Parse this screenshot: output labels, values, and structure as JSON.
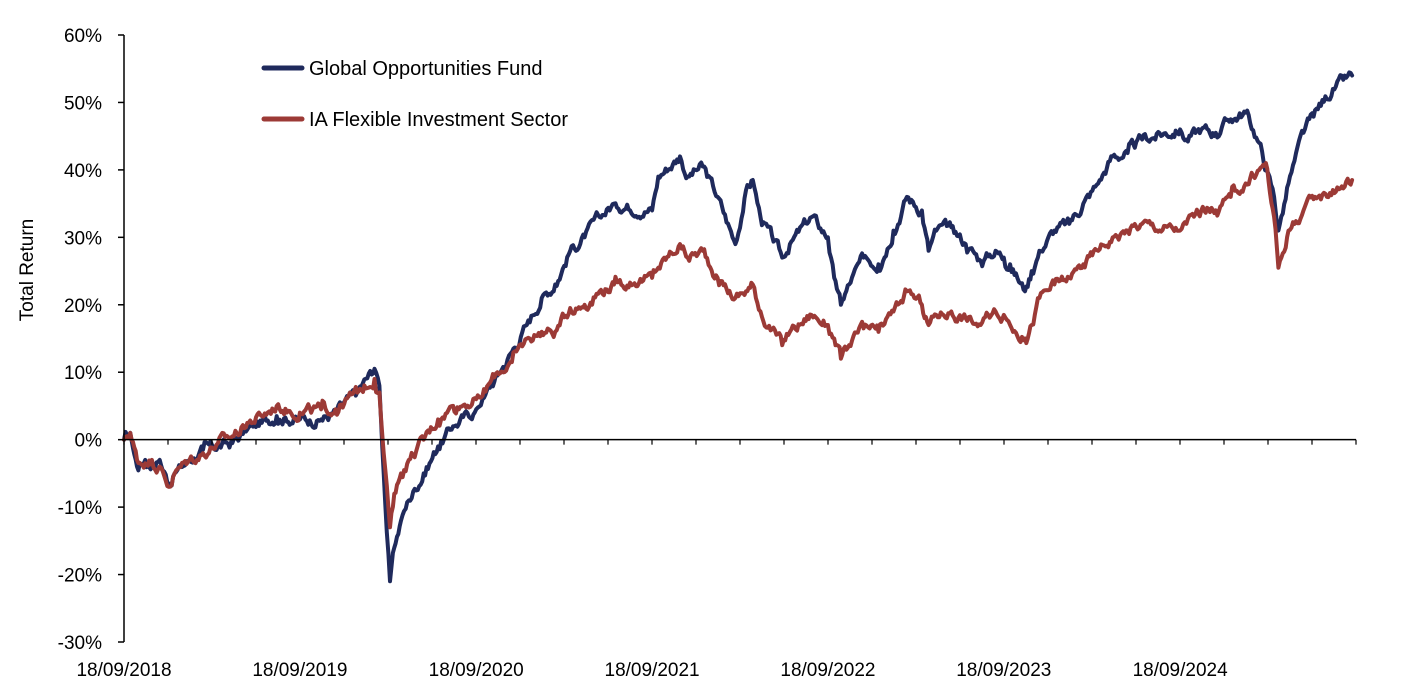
{
  "chart_data": {
    "type": "line",
    "title": "",
    "ylabel": "Total Return",
    "xlabel": "",
    "ylim": [
      -30,
      60
    ],
    "y_unit": "%",
    "y_ticks": [
      -30,
      -20,
      -10,
      0,
      10,
      20,
      30,
      40,
      50,
      60
    ],
    "y_tick_labels": [
      "-30%",
      "-20%",
      "-10%",
      "0%",
      "10%",
      "20%",
      "30%",
      "40%",
      "50%",
      "60%"
    ],
    "x_start": "18/09/2018",
    "x_end": "18/09/2025",
    "x_tick_labels": [
      "18/09/2018",
      "18/09/2019",
      "18/09/2020",
      "18/09/2021",
      "18/09/2022",
      "18/09/2023",
      "18/09/2024"
    ],
    "minor_ticks_per_year": 4,
    "legend_position": "top-left",
    "series": [
      {
        "name": "Global Opportunities Fund",
        "color": "#1f2a5c",
        "points": [
          [
            "18/09/2018",
            0
          ],
          [
            "01/10/2018",
            1
          ],
          [
            "15/10/2018",
            -4
          ],
          [
            "01/11/2018",
            -3
          ],
          [
            "15/11/2018",
            -4
          ],
          [
            "01/12/2018",
            -3
          ],
          [
            "20/12/2018",
            -6.5
          ],
          [
            "01/01/2019",
            -5
          ],
          [
            "01/02/2019",
            -3
          ],
          [
            "01/03/2019",
            -1.5
          ],
          [
            "01/04/2019",
            -1
          ],
          [
            "01/05/2019",
            -0.5
          ],
          [
            "01/06/2019",
            1.5
          ],
          [
            "01/07/2019",
            2.5
          ],
          [
            "01/08/2019",
            3.5
          ],
          [
            "18/09/2019",
            3
          ],
          [
            "01/11/2019",
            3
          ],
          [
            "01/12/2019",
            4
          ],
          [
            "15/01/2020",
            7
          ],
          [
            "20/02/2020",
            10.5
          ],
          [
            "01/03/2020",
            8
          ],
          [
            "10/03/2020",
            -5
          ],
          [
            "23/03/2020",
            -21
          ],
          [
            "01/04/2020",
            -16
          ],
          [
            "15/04/2020",
            -12
          ],
          [
            "01/05/2020",
            -9
          ],
          [
            "01/06/2020",
            -5
          ],
          [
            "01/07/2020",
            -1
          ],
          [
            "01/08/2020",
            2
          ],
          [
            "18/09/2020",
            4.5
          ],
          [
            "01/10/2020",
            6
          ],
          [
            "01/11/2020",
            9.5
          ],
          [
            "01/12/2020",
            13
          ],
          [
            "01/01/2021",
            17
          ],
          [
            "01/02/2021",
            21
          ],
          [
            "01/03/2021",
            23
          ],
          [
            "01/04/2021",
            28
          ],
          [
            "01/05/2021",
            30
          ],
          [
            "01/06/2021",
            33
          ],
          [
            "01/07/2021",
            35
          ],
          [
            "18/09/2021",
            34
          ],
          [
            "01/10/2021",
            39
          ],
          [
            "15/11/2021",
            42
          ],
          [
            "01/12/2021",
            39
          ],
          [
            "01/01/2022",
            40.5
          ],
          [
            "01/02/2022",
            36
          ],
          [
            "10/03/2022",
            29
          ],
          [
            "01/04/2022",
            37
          ],
          [
            "15/04/2022",
            38.5
          ],
          [
            "01/05/2022",
            33
          ],
          [
            "15/06/2022",
            27
          ],
          [
            "01/07/2022",
            29
          ],
          [
            "15/08/2022",
            33
          ],
          [
            "18/09/2022",
            30
          ],
          [
            "01/10/2022",
            24
          ],
          [
            "15/10/2022",
            20
          ],
          [
            "01/11/2022",
            23
          ],
          [
            "01/12/2022",
            27
          ],
          [
            "01/01/2023",
            26
          ],
          [
            "01/02/2023",
            31
          ],
          [
            "01/03/2023",
            36
          ],
          [
            "01/04/2023",
            34
          ],
          [
            "15/04/2023",
            28
          ],
          [
            "01/05/2023",
            31
          ],
          [
            "01/06/2023",
            31.5
          ],
          [
            "01/07/2023",
            29
          ],
          [
            "01/08/2023",
            26.5
          ],
          [
            "01/09/2023",
            28
          ],
          [
            "18/09/2023",
            27
          ],
          [
            "01/10/2023",
            26
          ],
          [
            "01/11/2023",
            22
          ],
          [
            "15/11/2023",
            25
          ],
          [
            "01/12/2023",
            28
          ],
          [
            "01/01/2024",
            31
          ],
          [
            "01/02/2024",
            32
          ],
          [
            "01/03/2024",
            35
          ],
          [
            "01/04/2024",
            38
          ],
          [
            "01/05/2024",
            42
          ],
          [
            "01/06/2024",
            42.5
          ],
          [
            "01/07/2024",
            44.5
          ],
          [
            "18/09/2024",
            46
          ],
          [
            "01/10/2024",
            44.5
          ],
          [
            "01/11/2024",
            46
          ],
          [
            "01/12/2024",
            45.5
          ],
          [
            "01/01/2025",
            47.5
          ],
          [
            "01/02/2025",
            48.5
          ],
          [
            "01/03/2025",
            44
          ],
          [
            "01/04/2025",
            36
          ],
          [
            "10/04/2025",
            31
          ],
          [
            "01/05/2025",
            38
          ],
          [
            "01/06/2025",
            45.5
          ],
          [
            "01/07/2025",
            49
          ],
          [
            "01/08/2025",
            52
          ],
          [
            "10/09/2025",
            54
          ]
        ]
      },
      {
        "name": "IA Flexible Investment Sector",
        "color": "#9c3a36",
        "points": [
          [
            "18/09/2018",
            0
          ],
          [
            "01/10/2018",
            1
          ],
          [
            "15/10/2018",
            -3
          ],
          [
            "01/11/2018",
            -3.5
          ],
          [
            "15/11/2018",
            -3
          ],
          [
            "01/12/2018",
            -4
          ],
          [
            "20/12/2018",
            -7
          ],
          [
            "01/01/2019",
            -5
          ],
          [
            "01/02/2019",
            -3
          ],
          [
            "01/03/2019",
            -2
          ],
          [
            "01/04/2019",
            -0.5
          ],
          [
            "01/05/2019",
            0.5
          ],
          [
            "01/06/2019",
            2.5
          ],
          [
            "01/07/2019",
            3.5
          ],
          [
            "01/08/2019",
            5
          ],
          [
            "18/09/2019",
            4
          ],
          [
            "01/11/2019",
            4.5
          ],
          [
            "01/12/2019",
            4.5
          ],
          [
            "15/01/2020",
            7
          ],
          [
            "20/02/2020",
            9
          ],
          [
            "01/03/2020",
            7
          ],
          [
            "10/03/2020",
            -2
          ],
          [
            "23/03/2020",
            -13
          ],
          [
            "01/04/2020",
            -8
          ],
          [
            "15/04/2020",
            -5
          ],
          [
            "01/05/2020",
            -3
          ],
          [
            "01/06/2020",
            0
          ],
          [
            "01/07/2020",
            3
          ],
          [
            "01/08/2020",
            5
          ],
          [
            "18/09/2020",
            6
          ],
          [
            "01/10/2020",
            6.5
          ],
          [
            "01/11/2020",
            10
          ],
          [
            "01/12/2020",
            11.5
          ],
          [
            "01/01/2021",
            15
          ],
          [
            "01/02/2021",
            16
          ],
          [
            "01/03/2021",
            16
          ],
          [
            "01/04/2021",
            19.5
          ],
          [
            "01/05/2021",
            20
          ],
          [
            "01/06/2021",
            22
          ],
          [
            "01/07/2021",
            23
          ],
          [
            "18/09/2021",
            24
          ],
          [
            "01/10/2021",
            25.5
          ],
          [
            "15/11/2021",
            29
          ],
          [
            "01/12/2021",
            27
          ],
          [
            "01/01/2022",
            28
          ],
          [
            "01/02/2022",
            24
          ],
          [
            "10/03/2022",
            21
          ],
          [
            "01/04/2022",
            22
          ],
          [
            "15/04/2022",
            23
          ],
          [
            "01/05/2022",
            19
          ],
          [
            "15/06/2022",
            14
          ],
          [
            "01/07/2022",
            16
          ],
          [
            "15/08/2022",
            18.5
          ],
          [
            "18/09/2022",
            17
          ],
          [
            "01/10/2022",
            15
          ],
          [
            "15/10/2022",
            12
          ],
          [
            "01/11/2022",
            14
          ],
          [
            "01/12/2022",
            16.5
          ],
          [
            "01/01/2023",
            16
          ],
          [
            "01/02/2023",
            19
          ],
          [
            "01/03/2023",
            22
          ],
          [
            "01/04/2023",
            20
          ],
          [
            "15/04/2023",
            17
          ],
          [
            "01/05/2023",
            18.5
          ],
          [
            "01/06/2023",
            19
          ],
          [
            "01/07/2023",
            18
          ],
          [
            "01/08/2023",
            17
          ],
          [
            "01/09/2023",
            19
          ],
          [
            "18/09/2023",
            18.5
          ],
          [
            "01/10/2023",
            17
          ],
          [
            "01/11/2023",
            15
          ],
          [
            "15/11/2023",
            17
          ],
          [
            "01/12/2023",
            21
          ],
          [
            "01/01/2024",
            23
          ],
          [
            "01/02/2024",
            24
          ],
          [
            "01/03/2024",
            26
          ],
          [
            "01/04/2024",
            28
          ],
          [
            "01/05/2024",
            30
          ],
          [
            "01/06/2024",
            31
          ],
          [
            "01/07/2024",
            32
          ],
          [
            "18/09/2024",
            31
          ],
          [
            "01/10/2024",
            32
          ],
          [
            "01/11/2024",
            34
          ],
          [
            "01/12/2024",
            34
          ],
          [
            "01/01/2025",
            36
          ],
          [
            "01/02/2025",
            38
          ],
          [
            "01/03/2025",
            40
          ],
          [
            "15/03/2025",
            41
          ],
          [
            "01/04/2025",
            33
          ],
          [
            "10/04/2025",
            25.5
          ],
          [
            "01/05/2025",
            31
          ],
          [
            "01/06/2025",
            34
          ],
          [
            "01/07/2025",
            36
          ],
          [
            "01/08/2025",
            37
          ],
          [
            "10/09/2025",
            38.5
          ]
        ]
      }
    ]
  }
}
